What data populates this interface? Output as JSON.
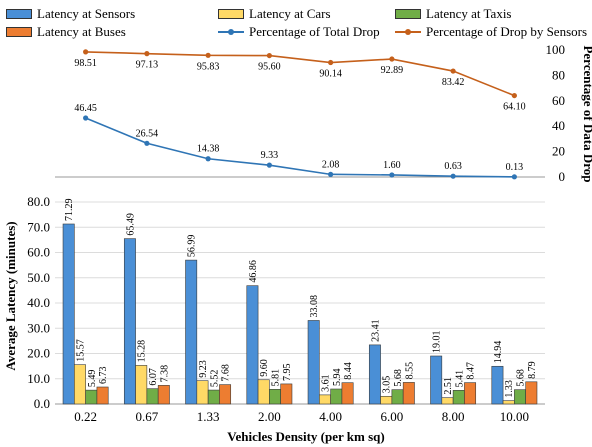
{
  "chart_data": [
    {
      "type": "line",
      "x": [
        "0.22",
        "0.67",
        "1.33",
        "2.00",
        "4.00",
        "6.00",
        "8.00",
        "10.00"
      ],
      "ylabel": "Percentage of Data Drop",
      "ylim": [
        0,
        100
      ],
      "yticks": [
        "0",
        "20",
        "40",
        "60",
        "80",
        "100"
      ],
      "series": [
        {
          "name": "Percentage of Total Drop",
          "color": "#2f75b5",
          "values": [
            46.45,
            26.54,
            14.38,
            9.33,
            2.08,
            1.6,
            0.63,
            0.13
          ],
          "labels": [
            "46.45",
            "26.54",
            "14.38",
            "9.33",
            "2.08",
            "1.60",
            "0.63",
            "0.13"
          ]
        },
        {
          "name": "Percentage of Drop by Sensors",
          "color": "#c5601b",
          "values": [
            98.51,
            97.13,
            95.83,
            95.6,
            90.14,
            92.89,
            83.42,
            64.1
          ],
          "labels": [
            "98.51",
            "97.13",
            "95.83",
            "95.60",
            "90.14",
            "92.89",
            "83.42",
            "64.10"
          ]
        }
      ]
    },
    {
      "type": "bar",
      "categories": [
        "0.22",
        "0.67",
        "1.33",
        "2.00",
        "4.00",
        "6.00",
        "8.00",
        "10.00"
      ],
      "xlabel": "Vehicles Density (per km sq)",
      "ylabel": "Average Latency (minutes)",
      "ylim": [
        0,
        80
      ],
      "yticks": [
        "0.0",
        "10.0",
        "20.0",
        "30.0",
        "40.0",
        "50.0",
        "60.0",
        "70.0",
        "80.0"
      ],
      "series": [
        {
          "name": "Latency at Sensors",
          "color": "#4a8fd6",
          "values": [
            71.29,
            65.49,
            56.99,
            46.86,
            33.08,
            23.41,
            19.01,
            14.94
          ],
          "labels": [
            "71.29",
            "65.49",
            "56.99",
            "46.86",
            "33.08",
            "23.41",
            "19.01",
            "14.94"
          ]
        },
        {
          "name": "Latency at Cars",
          "color": "#ffd966",
          "values": [
            15.57,
            15.28,
            9.23,
            9.6,
            3.61,
            3.05,
            2.51,
            1.33
          ],
          "labels": [
            "15.57",
            "15.28",
            "9.23",
            "9.60",
            "3.61",
            "3.05",
            "2.51",
            "1.33"
          ]
        },
        {
          "name": "Latency at Taxis",
          "color": "#70ad47",
          "values": [
            5.49,
            6.07,
            5.52,
            5.81,
            5.94,
            5.68,
            5.41,
            5.68
          ],
          "labels": [
            "5.49",
            "6.07",
            "5.52",
            "5.81",
            "5.94",
            "5.68",
            "5.41",
            "5.68"
          ]
        },
        {
          "name": "Latency at Buses",
          "color": "#ed7d31",
          "values": [
            6.73,
            7.38,
            7.68,
            7.95,
            8.44,
            8.55,
            8.47,
            8.79
          ],
          "labels": [
            "6.73",
            "7.38",
            "7.68",
            "7.95",
            "8.44",
            "8.55",
            "8.47",
            "8.79"
          ]
        }
      ]
    }
  ],
  "legend": {
    "items": [
      {
        "label": "Latency at Sensors",
        "kind": "bar",
        "color": "#4a8fd6"
      },
      {
        "label": "Latency at Cars",
        "kind": "bar",
        "color": "#ffd966"
      },
      {
        "label": "Latency at Taxis",
        "kind": "bar",
        "color": "#70ad47"
      },
      {
        "label": "Latency at Buses",
        "kind": "bar",
        "color": "#ed7d31"
      },
      {
        "label": "Percentage of Total Drop",
        "kind": "line",
        "color": "#2f75b5"
      },
      {
        "label": "Percentage of Drop by Sensors",
        "kind": "line",
        "color": "#c5601b"
      }
    ]
  }
}
